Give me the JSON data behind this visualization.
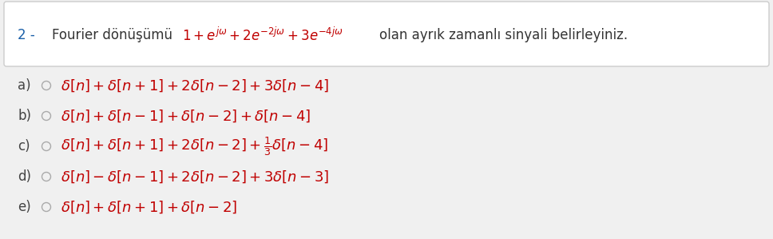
{
  "bg_color": "#f0f0f0",
  "white_box_color": "#ffffff",
  "border_color": "#cccccc",
  "q_label_color": "#1a5fa8",
  "q_math_color": "#c00000",
  "q_text_color": "#333333",
  "answer_color": "#c00000",
  "label_color": "#444444",
  "circle_color": "#aaaaaa",
  "answers": [
    {
      "label": "a)",
      "expr": "$\\delta[n] + \\delta[n+1] + 2\\delta[n-2] + 3\\delta[n-4]$"
    },
    {
      "label": "b)",
      "expr": "$\\delta[n] + \\delta[n-1] + \\delta[n-2] + \\delta[n-4]$"
    },
    {
      "label": "c)",
      "expr": "$\\delta[n] + \\delta[n+1] + 2\\delta[n-2] + \\frac{1}{3}\\delta[n-4]$"
    },
    {
      "label": "d)",
      "expr": "$\\delta[n] - \\delta[n-1] + 2\\delta[n-2] + 3\\delta[n-3]$"
    },
    {
      "label": "e)",
      "expr": "$\\delta[n] + \\delta[n+1] + \\delta[n-2]$"
    }
  ],
  "figsize": [
    9.68,
    2.99
  ],
  "dpi": 100
}
